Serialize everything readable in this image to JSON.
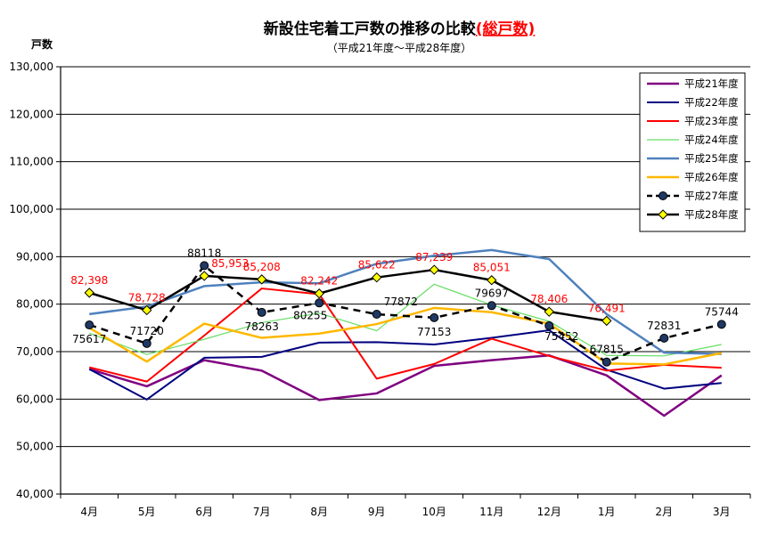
{
  "chart_data": {
    "type": "line",
    "title_main": "新設住宅着工戸数の推移の比較",
    "title_highlight": "(総戸数)",
    "subtitle": "（平成21年度～平成28年度）",
    "ylabel": "戸数",
    "ylim": [
      40000,
      130000
    ],
    "ytick_step": 10000,
    "ytick_labels": [
      "40,000",
      "50,000",
      "60,000",
      "70,000",
      "80,000",
      "90,000",
      "100,000",
      "110,000",
      "120,000",
      "130,000"
    ],
    "categories": [
      "4月",
      "5月",
      "6月",
      "7月",
      "8月",
      "9月",
      "10月",
      "11月",
      "12月",
      "1月",
      "2月",
      "3月"
    ],
    "series": [
      {
        "name": "平成21年度",
        "color": "#800080",
        "width": 2.5,
        "dash": "",
        "marker": "none",
        "values": [
          66300,
          62700,
          68200,
          66000,
          59800,
          61200,
          67000,
          68200,
          69200,
          65000,
          56500,
          65000
        ]
      },
      {
        "name": "平成22年度",
        "color": "#000080",
        "width": 2,
        "dash": "",
        "marker": "none",
        "values": [
          66300,
          59900,
          68700,
          68900,
          71900,
          72000,
          71500,
          72900,
          74500,
          66200,
          62200,
          63400
        ]
      },
      {
        "name": "平成23年度",
        "color": "#ff0000",
        "width": 2,
        "dash": "",
        "marker": "none",
        "values": [
          66700,
          63700,
          73400,
          83300,
          82100,
          64300,
          67400,
          72700,
          69100,
          66000,
          67200,
          66600
        ]
      },
      {
        "name": "平成24年度",
        "color": "#66dd66",
        "width": 1.2,
        "dash": "",
        "marker": "none",
        "values": [
          73900,
          69400,
          72600,
          76100,
          78100,
          74400,
          84200,
          79800,
          76400,
          69200,
          69100,
          71500
        ]
      },
      {
        "name": "平成25年度",
        "color": "#4f81bd",
        "width": 2.5,
        "dash": "",
        "marker": "none",
        "values": [
          77900,
          79500,
          83800,
          84600,
          84400,
          88500,
          90200,
          91400,
          89500,
          77900,
          69800,
          69500
        ]
      },
      {
        "name": "平成26年度",
        "color": "#ffb800",
        "width": 2.5,
        "dash": "",
        "marker": "none",
        "values": [
          75000,
          67900,
          75900,
          72900,
          73800,
          75800,
          79200,
          78300,
          75900,
          67500,
          67300,
          69700
        ]
      },
      {
        "name": "平成27年度",
        "color": "#000000",
        "width": 2.5,
        "dash": "8,6",
        "marker": "circle",
        "markerFill": "#1f3864",
        "values": [
          75617,
          71720,
          88118,
          78263,
          80255,
          77872,
          77153,
          79697,
          75452,
          67815,
          72831,
          75744
        ]
      },
      {
        "name": "平成28年度",
        "color": "#000000",
        "width": 2.5,
        "dash": "",
        "marker": "diamond",
        "markerFill": "#ffff00",
        "values": [
          82398,
          78728,
          85953,
          85208,
          82242,
          85622,
          87239,
          85051,
          78406,
          76491,
          null,
          null
        ]
      }
    ],
    "data_labels": [
      {
        "text": "82,398",
        "color": "#ff0000",
        "cat": 0,
        "value": 82398,
        "pos": "above"
      },
      {
        "text": "78,728",
        "color": "#ff0000",
        "cat": 1,
        "value": 78728,
        "pos": "above"
      },
      {
        "text": "85,953",
        "color": "#ff0000",
        "cat": 2,
        "value": 85953,
        "pos": "above-right"
      },
      {
        "text": "85,208",
        "color": "#ff0000",
        "cat": 3,
        "value": 85208,
        "pos": "above"
      },
      {
        "text": "82,242",
        "color": "#ff0000",
        "cat": 4,
        "value": 82242,
        "pos": "above"
      },
      {
        "text": "85,622",
        "color": "#ff0000",
        "cat": 5,
        "value": 85622,
        "pos": "above"
      },
      {
        "text": "87,239",
        "color": "#ff0000",
        "cat": 6,
        "value": 87239,
        "pos": "above"
      },
      {
        "text": "85,051",
        "color": "#ff0000",
        "cat": 7,
        "value": 85051,
        "pos": "above"
      },
      {
        "text": "78,406",
        "color": "#ff0000",
        "cat": 8,
        "value": 78406,
        "pos": "above"
      },
      {
        "text": "76,491",
        "color": "#ff0000",
        "cat": 9,
        "value": 76491,
        "pos": "above"
      },
      {
        "text": "75617",
        "color": "#000000",
        "cat": 0,
        "value": 75617,
        "pos": "below"
      },
      {
        "text": "71720",
        "color": "#000000",
        "cat": 1,
        "value": 71720,
        "pos": "above"
      },
      {
        "text": "88118",
        "color": "#000000",
        "cat": 2,
        "value": 88118,
        "pos": "above"
      },
      {
        "text": "78263",
        "color": "#000000",
        "cat": 3,
        "value": 78263,
        "pos": "below"
      },
      {
        "text": "80255",
        "color": "#000000",
        "cat": 4,
        "value": 80255,
        "pos": "below-left"
      },
      {
        "text": "77872",
        "color": "#000000",
        "cat": 5,
        "value": 77872,
        "pos": "above-right"
      },
      {
        "text": "77153",
        "color": "#000000",
        "cat": 6,
        "value": 77153,
        "pos": "below"
      },
      {
        "text": "79697",
        "color": "#000000",
        "cat": 7,
        "value": 79697,
        "pos": "above"
      },
      {
        "text": "75452",
        "color": "#000000",
        "cat": 8,
        "value": 75452,
        "pos": "below-right"
      },
      {
        "text": "67815",
        "color": "#000000",
        "cat": 9,
        "value": 67815,
        "pos": "above"
      },
      {
        "text": "72831",
        "color": "#000000",
        "cat": 10,
        "value": 72831,
        "pos": "above"
      },
      {
        "text": "75744",
        "color": "#000000",
        "cat": 11,
        "value": 75744,
        "pos": "above"
      }
    ],
    "legend_position": "top-right",
    "grid": true
  }
}
